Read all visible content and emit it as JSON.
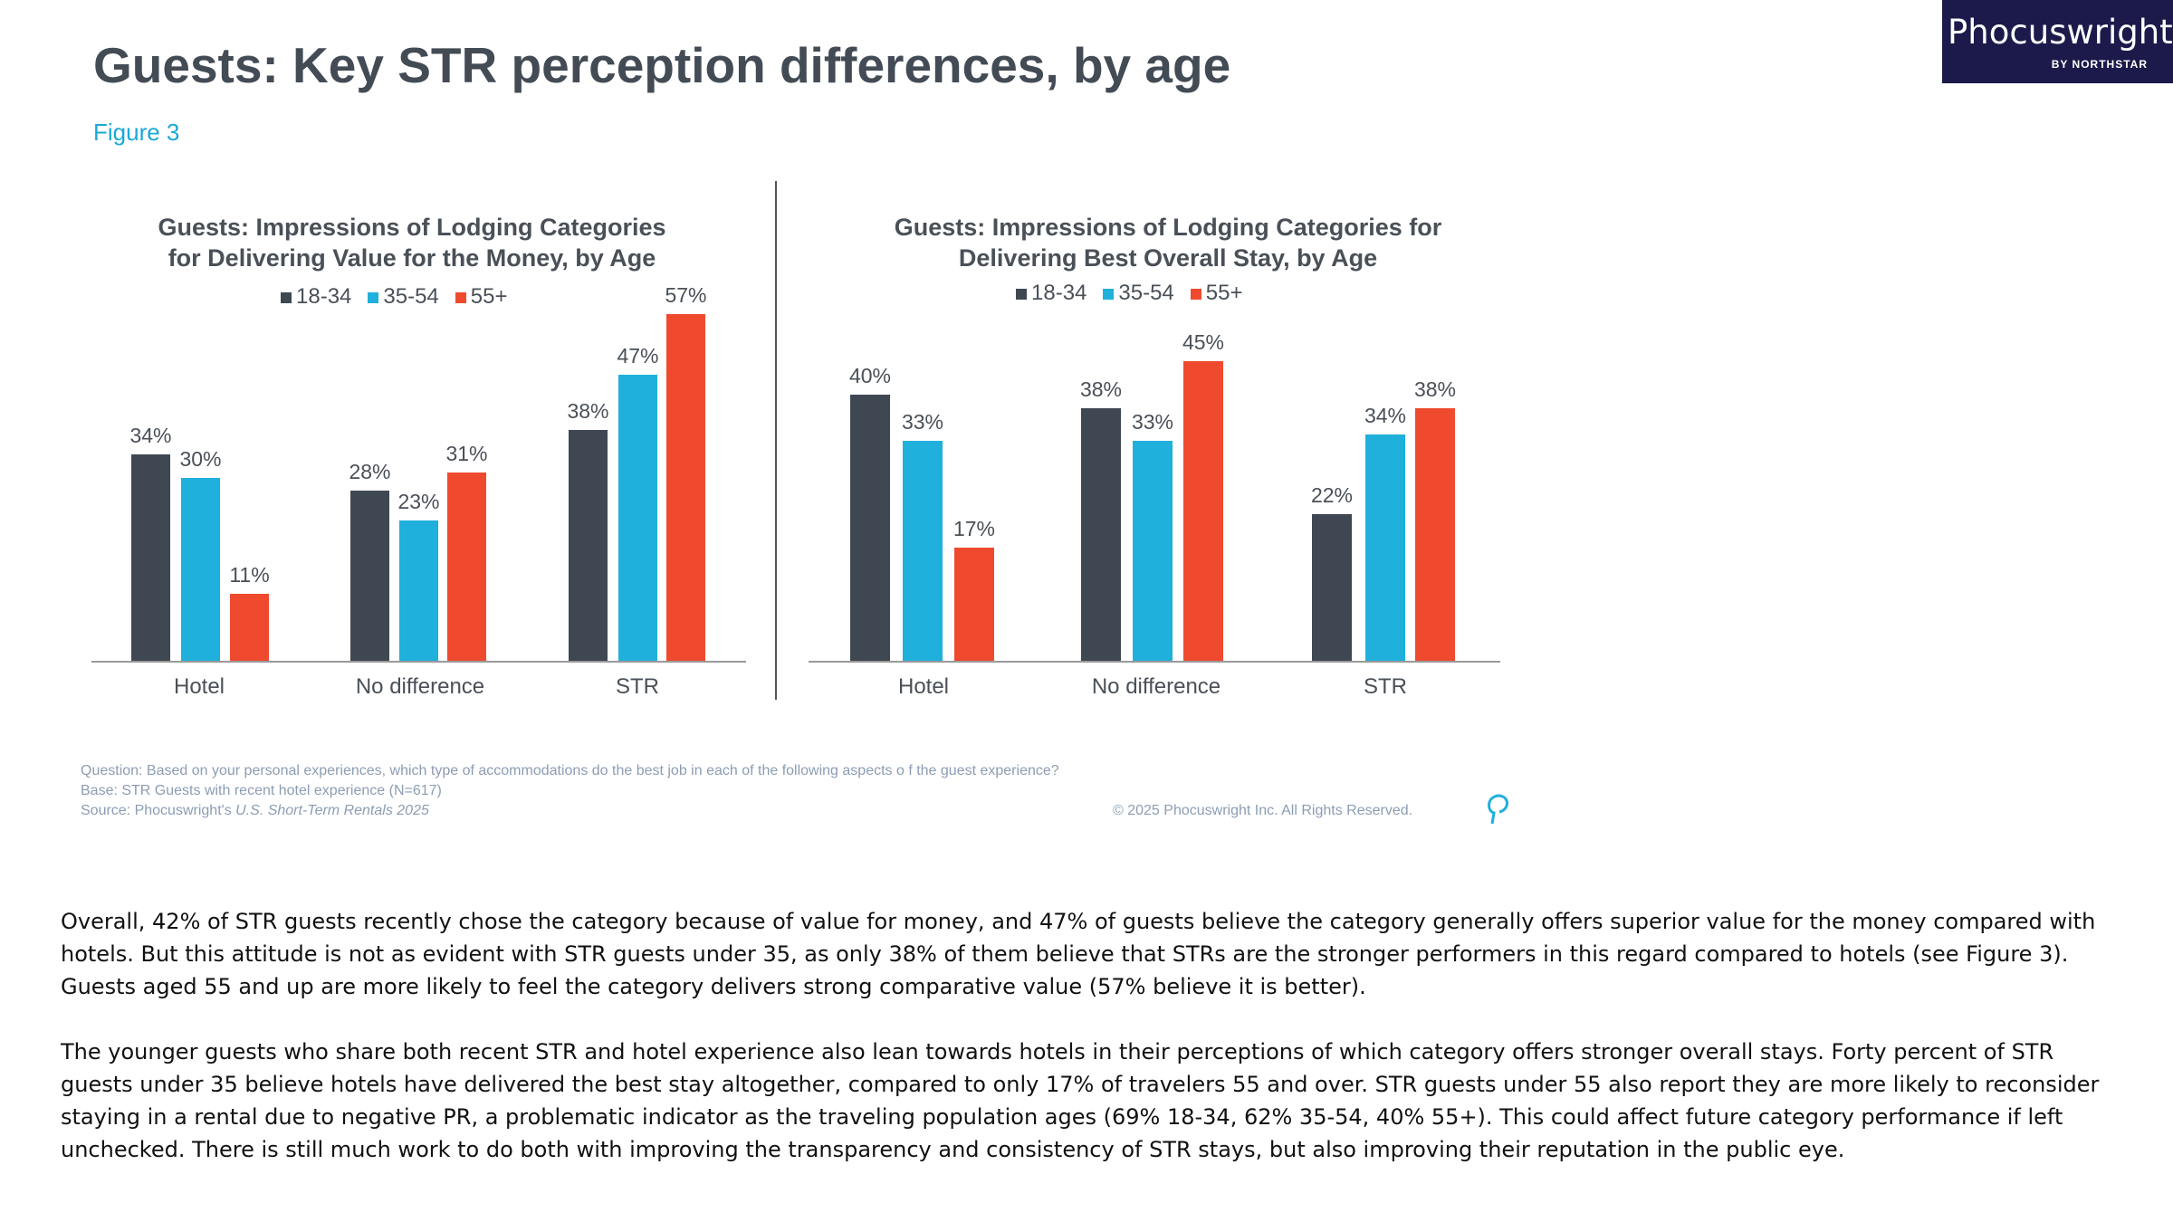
{
  "header": {
    "title": "Guests: Key STR perception differences, by age",
    "figure": "Figure 3",
    "logo_text": "Phocuswright",
    "logo_sub": "BY NORTHSTAR"
  },
  "colors": {
    "18-34": "#3f4852",
    "35-54": "#1fb0dc",
    "55+": "#ef4a2e"
  },
  "chart_data": [
    {
      "type": "bar",
      "title_line1": "Guests: Impressions of Lodging Categories",
      "title_line2": "for Delivering Value for the Money, by Age",
      "categories": [
        "Hotel",
        "No difference",
        "STR"
      ],
      "legend": [
        "18-34",
        "35-54",
        "55+"
      ],
      "series": [
        {
          "name": "18-34",
          "values": [
            34,
            28,
            38
          ]
        },
        {
          "name": "35-54",
          "values": [
            30,
            23,
            47
          ]
        },
        {
          "name": "55+",
          "values": [
            11,
            31,
            57
          ]
        }
      ],
      "unit": "%",
      "ylim": [
        0,
        60
      ]
    },
    {
      "type": "bar",
      "title_line1": "Guests: Impressions of Lodging Categories for",
      "title_line2": "Delivering Best Overall Stay, by Age",
      "categories": [
        "Hotel",
        "No difference",
        "STR"
      ],
      "legend": [
        "18-34",
        "35-54",
        "55+"
      ],
      "series": [
        {
          "name": "18-34",
          "values": [
            40,
            38,
            22
          ]
        },
        {
          "name": "35-54",
          "values": [
            33,
            33,
            34
          ]
        },
        {
          "name": "55+",
          "values": [
            17,
            45,
            38
          ]
        }
      ],
      "unit": "%",
      "ylim": [
        0,
        50
      ]
    }
  ],
  "footnotes": {
    "question": "Question: Based on your personal experiences, which type of accommodations do the best job in each of the following aspects o          f the guest experience?",
    "base": "Base: STR Guests with recent hotel experience (N=617)",
    "source_prefix": "Source: Phocuswright's ",
    "source_title": "U.S. Short-Term Rentals 2025",
    "copyright": "© 2025 Phocuswright Inc. All Rights Reserved."
  },
  "body": {
    "paragraphs": [
      "Overall, 42% of STR guests recently chose the category because of value for money, and 47% of guests believe the category generally offers superior value for the money compared with hotels. But this attitude is not as evident with STR guests under 35, as only 38% of them believe that STRs are the stronger performers in this regard compared to hotels (see Figure 3). Guests aged 55 and up are more likely to feel the category delivers strong comparative value (57% believe it is better).",
      "The younger guests who share both recent STR and hotel experience also lean towards hotels in their perceptions of which category offers stronger overall stays. Forty percent of STR guests under 35 believe hotels have delivered the best stay altogether, compared to only 17% of travelers 55 and over. STR guests under 55 also report they are more likely to reconsider staying in a rental due to negative PR, a problematic indicator as the traveling population ages (69% 18-34, 62% 35-54, 40% 55+). This could affect future category performance if left unchecked. There is still much work to do both with improving the transparency and consistency of STR stays, but also improving their reputation in the public eye."
    ]
  }
}
